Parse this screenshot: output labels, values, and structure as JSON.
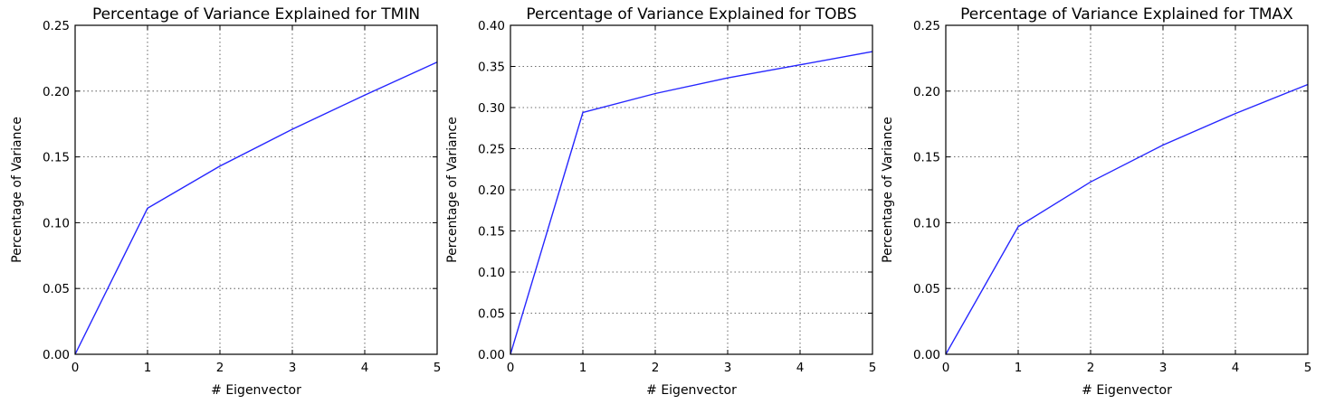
{
  "chart_data": [
    {
      "type": "line",
      "title": "Percentage of Variance Explained for TMIN",
      "xlabel": "# Eigenvector",
      "ylabel": "Percentage of Variance",
      "xlim": [
        0,
        5
      ],
      "ylim": [
        0,
        0.25
      ],
      "xticks": [
        "0",
        "1",
        "2",
        "3",
        "4",
        "5"
      ],
      "yticks": [
        "0.00",
        "0.05",
        "0.10",
        "0.15",
        "0.20",
        "0.25"
      ],
      "grid": true,
      "series_color": "#0000ff",
      "x": [
        0,
        1,
        2,
        3,
        4,
        5
      ],
      "values": [
        0.0,
        0.111,
        0.143,
        0.171,
        0.197,
        0.222
      ]
    },
    {
      "type": "line",
      "title": "Percentage of Variance Explained for TOBS",
      "xlabel": "# Eigenvector",
      "ylabel": "Percentage of Variance",
      "xlim": [
        0,
        5
      ],
      "ylim": [
        0,
        0.4
      ],
      "xticks": [
        "0",
        "1",
        "2",
        "3",
        "4",
        "5"
      ],
      "yticks": [
        "0.00",
        "0.05",
        "0.10",
        "0.15",
        "0.20",
        "0.25",
        "0.30",
        "0.35",
        "0.40"
      ],
      "grid": true,
      "series_color": "#0000ff",
      "x": [
        0,
        1,
        2,
        3,
        4,
        5
      ],
      "values": [
        0.0,
        0.294,
        0.317,
        0.336,
        0.352,
        0.368
      ]
    },
    {
      "type": "line",
      "title": "Percentage of Variance Explained for TMAX",
      "xlabel": "# Eigenvector",
      "ylabel": "Percentage of Variance",
      "xlim": [
        0,
        5
      ],
      "ylim": [
        0,
        0.25
      ],
      "xticks": [
        "0",
        "1",
        "2",
        "3",
        "4",
        "5"
      ],
      "yticks": [
        "0.00",
        "0.05",
        "0.10",
        "0.15",
        "0.20",
        "0.25"
      ],
      "grid": true,
      "series_color": "#0000ff",
      "x": [
        0,
        1,
        2,
        3,
        4,
        5
      ],
      "values": [
        0.0,
        0.097,
        0.131,
        0.159,
        0.183,
        0.205
      ]
    }
  ]
}
